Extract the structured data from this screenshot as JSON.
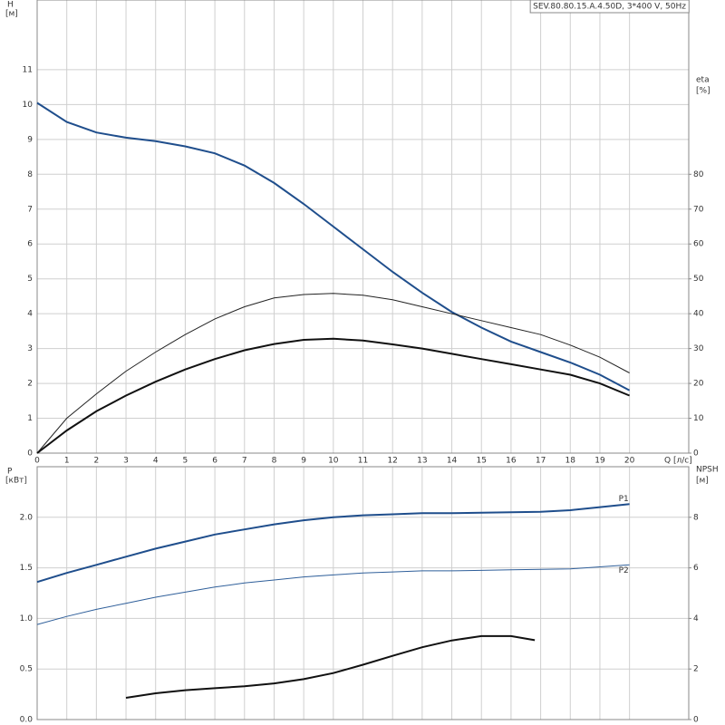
{
  "chart_data": [
    {
      "type": "line",
      "title": "SEV.80.80.15.A.4.50D, 3*400 V, 50Hz",
      "ylabel": "H",
      "ylabel_unit": "[м]",
      "y2label": "eta",
      "y2label_unit": "[%]",
      "xlabel": "Q [л/с]",
      "x": [
        0,
        1,
        2,
        3,
        4,
        5,
        6,
        7,
        8,
        9,
        10,
        11,
        12,
        13,
        14,
        15,
        16,
        17,
        18,
        19,
        20
      ],
      "xlim": [
        0,
        22
      ],
      "xticks": [
        0,
        1,
        2,
        3,
        4,
        5,
        6,
        7,
        8,
        9,
        10,
        11,
        12,
        13,
        14,
        15,
        16,
        17,
        18,
        19,
        20
      ],
      "ylim": [
        0,
        13
      ],
      "yticks": [
        0,
        1,
        2,
        3,
        4,
        5,
        6,
        7,
        8,
        9,
        10,
        11
      ],
      "y2lim": [
        0,
        130
      ],
      "y2ticks": [
        0,
        10,
        20,
        30,
        40,
        50,
        60,
        70,
        80
      ],
      "grid": true,
      "series": [
        {
          "color": "#1f4e8c",
          "linewidth": 2,
          "values": [
            10.05,
            9.5,
            9.2,
            9.05,
            8.95,
            8.8,
            8.6,
            8.25,
            7.75,
            7.15,
            6.5,
            5.85,
            5.2,
            4.6,
            4.05,
            3.6,
            3.2,
            2.9,
            2.6,
            2.25,
            1.8
          ]
        },
        {
          "color": "#222222",
          "linewidth": 1,
          "axis": "y2",
          "values": [
            0,
            10,
            17,
            23.5,
            29,
            34,
            38.5,
            42,
            44.5,
            45.5,
            45.8,
            45.3,
            44,
            42,
            40,
            38,
            36,
            34,
            31,
            27.5,
            23
          ]
        },
        {
          "color": "#111111",
          "linewidth": 2,
          "axis": "y2",
          "values": [
            0,
            6.5,
            12,
            16.5,
            20.5,
            24,
            27,
            29.5,
            31.3,
            32.5,
            32.8,
            32.3,
            31.2,
            30,
            28.5,
            27,
            25.5,
            24,
            22.5,
            20,
            16.5
          ]
        }
      ]
    },
    {
      "type": "line",
      "ylabel": "P",
      "ylabel_unit": "[кВт]",
      "y2label": "NPSH",
      "y2label_unit": "[м]",
      "x": [
        0,
        1,
        2,
        3,
        4,
        5,
        6,
        7,
        8,
        9,
        10,
        11,
        12,
        13,
        14,
        15,
        16,
        17,
        18,
        19,
        20
      ],
      "xlim": [
        0,
        22
      ],
      "xticks": [
        0,
        1,
        2,
        3,
        4,
        5,
        6,
        7,
        8,
        9,
        10,
        11,
        12,
        13,
        14,
        15,
        16,
        17,
        18,
        19,
        20
      ],
      "ylim": [
        0,
        2.5
      ],
      "yticks": [
        {
          "value": 0,
          "label": "0.0"
        },
        0.5,
        {
          "value": 1,
          "label": "1.0"
        },
        1.5,
        {
          "value": 2,
          "label": "2.0"
        }
      ],
      "y2lim": [
        0,
        10
      ],
      "y2ticks": [
        0,
        2,
        4,
        6,
        8
      ],
      "grid": true,
      "series": [
        {
          "name": "P1",
          "color": "#1f4e8c",
          "linewidth": 2,
          "values": [
            1.36,
            1.45,
            1.53,
            1.61,
            1.69,
            1.76,
            1.83,
            1.88,
            1.93,
            1.97,
            2.0,
            2.02,
            2.03,
            2.04,
            2.04,
            2.045,
            2.05,
            2.055,
            2.07,
            2.1,
            2.13
          ]
        },
        {
          "name": "P2",
          "color": "#2f5f9a",
          "linewidth": 1,
          "values": [
            0.94,
            1.02,
            1.09,
            1.15,
            1.21,
            1.26,
            1.31,
            1.35,
            1.38,
            1.41,
            1.43,
            1.45,
            1.46,
            1.47,
            1.47,
            1.475,
            1.48,
            1.485,
            1.49,
            1.51,
            1.53
          ]
        },
        {
          "color": "#111111",
          "linewidth": 2,
          "axis": "y2",
          "x": [
            3,
            4,
            5,
            6,
            7,
            8,
            9,
            10,
            11,
            12,
            13,
            14,
            15,
            16,
            16.8
          ],
          "values": [
            0.86,
            1.04,
            1.16,
            1.24,
            1.32,
            1.43,
            1.6,
            1.84,
            2.17,
            2.52,
            2.86,
            3.13,
            3.3,
            3.3,
            3.14
          ]
        }
      ]
    }
  ]
}
